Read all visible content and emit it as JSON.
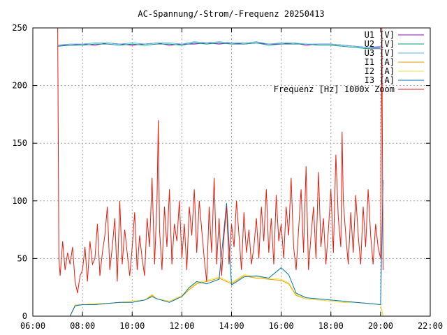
{
  "chart_data": {
    "type": "line",
    "title": "AC-Spannung/-Strom/-Frequenz 20250413",
    "xlabel": "",
    "ylabel": "",
    "xlim": [
      6,
      22
    ],
    "ylim": [
      0,
      250
    ],
    "x_ticks": [
      {
        "v": 6,
        "label": "06:00"
      },
      {
        "v": 8,
        "label": "08:00"
      },
      {
        "v": 10,
        "label": "10:00"
      },
      {
        "v": 12,
        "label": "12:00"
      },
      {
        "v": 14,
        "label": "14:00"
      },
      {
        "v": 16,
        "label": "16:00"
      },
      {
        "v": 18,
        "label": "18:00"
      },
      {
        "v": 20,
        "label": "20:00"
      },
      {
        "v": 22,
        "label": "22:00"
      }
    ],
    "y_ticks": [
      {
        "v": 0,
        "label": "0"
      },
      {
        "v": 50,
        "label": "50"
      },
      {
        "v": 100,
        "label": "100"
      },
      {
        "v": 150,
        "label": "150"
      },
      {
        "v": 200,
        "label": "200"
      },
      {
        "v": 250,
        "label": "250"
      }
    ],
    "grid": true,
    "legend_position": "top-right",
    "series": [
      {
        "name": "U1 [V]",
        "color": "#9400d3",
        "x": [
          7.0,
          7.5,
          8.0,
          8.5,
          9.0,
          9.5,
          10.0,
          10.5,
          11.0,
          11.5,
          12.0,
          12.5,
          13.0,
          13.5,
          14.0,
          14.5,
          15.0,
          15.5,
          16.0,
          16.5,
          17.0,
          17.5,
          18.0,
          18.5,
          19.0,
          19.5,
          20.0
        ],
        "y": [
          235,
          235,
          236,
          235,
          237,
          236,
          235,
          236,
          237,
          235,
          236,
          236,
          237,
          236,
          237,
          236,
          237,
          236,
          236,
          237,
          235,
          236,
          236,
          235,
          234,
          233,
          233
        ]
      },
      {
        "name": "U2 [V]",
        "color": "#009e73",
        "x": [
          7.0,
          7.5,
          8.0,
          8.5,
          9.0,
          9.5,
          10.0,
          10.5,
          11.0,
          11.5,
          12.0,
          12.5,
          13.0,
          13.5,
          14.0,
          14.5,
          15.0,
          15.5,
          16.0,
          16.5,
          17.0,
          17.5,
          18.0,
          18.5,
          19.0,
          19.5,
          20.0
        ],
        "y": [
          234,
          235,
          235,
          236,
          236,
          235,
          236,
          235,
          236,
          236,
          235,
          237,
          236,
          237,
          236,
          236,
          237,
          235,
          236,
          236,
          236,
          235,
          235,
          234,
          233,
          232,
          232
        ]
      },
      {
        "name": "U3 [V]",
        "color": "#56b4e9",
        "x": [
          7.0,
          7.5,
          8.0,
          8.5,
          9.0,
          9.5,
          10.0,
          10.5,
          11.0,
          11.5,
          12.0,
          12.5,
          13.0,
          13.5,
          14.0,
          14.5,
          15.0,
          15.5,
          16.0,
          16.5,
          17.0,
          17.5,
          18.0,
          18.5,
          19.0,
          19.5,
          20.0
        ],
        "y": [
          235,
          236,
          236,
          237,
          237,
          236,
          237,
          236,
          237,
          237,
          236,
          238,
          237,
          238,
          237,
          237,
          238,
          236,
          237,
          237,
          236,
          236,
          236,
          235,
          234,
          233,
          234
        ]
      },
      {
        "name": "I1 [A]",
        "color": "#e69f00",
        "x": [
          7.5,
          7.7,
          8.0,
          8.5,
          9.0,
          9.5,
          10.0,
          10.5,
          10.8,
          11.0,
          11.5,
          12.0,
          12.3,
          12.6,
          13.0,
          13.5,
          14.0,
          14.5,
          15.0,
          15.5,
          16.0,
          16.3,
          16.6,
          17.0,
          17.5,
          18.0,
          18.5,
          19.0,
          19.5,
          20.0,
          20.1
        ],
        "y": [
          0,
          9,
          10,
          10,
          11,
          12,
          13,
          14,
          18,
          15,
          13,
          17,
          23,
          28,
          30,
          33,
          28,
          35,
          33,
          32,
          31,
          28,
          18,
          15,
          14,
          13,
          12,
          12,
          11,
          10,
          0
        ]
      },
      {
        "name": "I2 [A]",
        "color": "#f0e442",
        "x": [
          7.5,
          7.7,
          8.0,
          8.5,
          9.0,
          9.5,
          10.0,
          10.5,
          10.8,
          11.0,
          11.5,
          12.0,
          12.3,
          12.6,
          13.0,
          13.5,
          14.0,
          14.5,
          15.0,
          15.5,
          16.0,
          16.3,
          16.6,
          17.0,
          17.5,
          18.0,
          18.5,
          19.0,
          19.5,
          20.0,
          20.1
        ],
        "y": [
          0,
          10,
          10,
          11,
          11,
          12,
          13,
          14,
          19,
          15,
          13,
          18,
          24,
          29,
          31,
          34,
          29,
          36,
          34,
          33,
          32,
          29,
          19,
          15,
          14,
          13,
          12,
          12,
          11,
          10,
          0
        ]
      },
      {
        "name": "I3 [A]",
        "color": "#0072b2",
        "x": [
          7.5,
          7.7,
          8.0,
          8.5,
          9.0,
          9.5,
          10.0,
          10.5,
          10.8,
          11.0,
          11.5,
          12.0,
          12.3,
          12.6,
          13.0,
          13.5,
          13.8,
          14.0,
          14.5,
          15.0,
          15.5,
          16.0,
          16.3,
          16.6,
          17.0,
          17.5,
          18.0,
          18.5,
          19.0,
          19.5,
          20.0,
          20.1
        ],
        "y": [
          0,
          9,
          10,
          10,
          11,
          12,
          12,
          14,
          17,
          15,
          12,
          17,
          25,
          30,
          28,
          32,
          98,
          27,
          34,
          35,
          33,
          42,
          36,
          20,
          16,
          15,
          14,
          13,
          12,
          11,
          10,
          118
        ]
      },
      {
        "name": "Frequenz [Hz] 1000x Zoom",
        "color": "#e51e10",
        "x": [
          7.0,
          7.05,
          7.1,
          7.2,
          7.3,
          7.4,
          7.5,
          7.6,
          7.7,
          7.8,
          7.9,
          8.0,
          8.1,
          8.2,
          8.3,
          8.4,
          8.5,
          8.6,
          8.7,
          8.8,
          8.9,
          9.0,
          9.1,
          9.2,
          9.3,
          9.4,
          9.5,
          9.6,
          9.7,
          9.8,
          9.9,
          10.0,
          10.1,
          10.2,
          10.3,
          10.4,
          10.5,
          10.6,
          10.7,
          10.8,
          10.9,
          11.0,
          11.05,
          11.1,
          11.2,
          11.3,
          11.4,
          11.5,
          11.6,
          11.7,
          11.8,
          11.9,
          12.0,
          12.1,
          12.2,
          12.3,
          12.4,
          12.5,
          12.6,
          12.7,
          12.8,
          12.9,
          13.0,
          13.1,
          13.2,
          13.3,
          13.4,
          13.5,
          13.6,
          13.7,
          13.8,
          13.9,
          14.0,
          14.1,
          14.2,
          14.3,
          14.4,
          14.5,
          14.6,
          14.7,
          14.8,
          14.9,
          15.0,
          15.1,
          15.2,
          15.3,
          15.4,
          15.5,
          15.6,
          15.7,
          15.8,
          15.9,
          16.0,
          16.1,
          16.2,
          16.3,
          16.4,
          16.5,
          16.6,
          16.7,
          16.8,
          16.9,
          17.0,
          17.1,
          17.2,
          17.3,
          17.4,
          17.5,
          17.6,
          17.7,
          17.8,
          17.9,
          18.0,
          18.1,
          18.2,
          18.3,
          18.4,
          18.45,
          18.5,
          18.6,
          18.7,
          18.8,
          18.9,
          19.0,
          19.1,
          19.2,
          19.3,
          19.4,
          19.5,
          19.6,
          19.7,
          19.8,
          19.9,
          20.0,
          20.05,
          20.1
        ],
        "y": [
          250,
          50,
          35,
          65,
          40,
          55,
          45,
          60,
          30,
          20,
          35,
          40,
          60,
          30,
          65,
          45,
          50,
          80,
          35,
          55,
          70,
          95,
          40,
          60,
          85,
          30,
          100,
          45,
          75,
          55,
          35,
          60,
          90,
          40,
          70,
          50,
          35,
          85,
          60,
          120,
          45,
          100,
          170,
          75,
          40,
          95,
          60,
          110,
          45,
          80,
          65,
          100,
          50,
          80,
          40,
          95,
          70,
          110,
          55,
          100,
          75,
          50,
          30,
          95,
          55,
          120,
          45,
          85,
          35,
          70,
          95,
          45,
          80,
          60,
          100,
          70,
          40,
          90,
          55,
          75,
          45,
          60,
          85,
          50,
          95,
          65,
          110,
          55,
          85,
          45,
          105,
          65,
          80,
          50,
          95,
          70,
          120,
          60,
          40,
          75,
          110,
          55,
          130,
          40,
          70,
          95,
          50,
          125,
          60,
          85,
          45,
          75,
          110,
          55,
          140,
          85,
          60,
          160,
          100,
          70,
          45,
          90,
          55,
          105,
          70,
          45,
          95,
          60,
          110,
          70,
          45,
          80,
          60,
          50,
          250,
          40
        ]
      }
    ]
  }
}
